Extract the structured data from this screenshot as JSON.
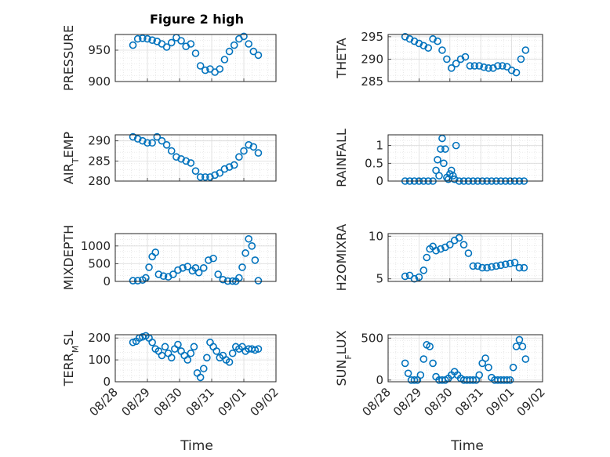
{
  "figure": {
    "title": "Figure 2 high"
  },
  "colors": {
    "marker": "#0072BD",
    "axis": "#262626",
    "grid": "#d9d9d9"
  },
  "chart_data": [
    {
      "type": "scatter",
      "ylabel": "PRESSURE",
      "ylabel_sub": "",
      "ylim": [
        900,
        975
      ],
      "yticks": [
        900,
        950
      ],
      "ytick_labels": [
        "900",
        "950"
      ],
      "xlim": [
        0,
        5
      ],
      "marker": "open-circle",
      "series": [
        {
          "x": [
            0.55,
            0.7,
            0.85,
            1.0,
            1.15,
            1.3,
            1.45,
            1.6,
            1.75,
            1.9,
            2.05,
            2.2,
            2.35,
            2.5,
            2.65,
            2.8,
            2.95,
            3.1,
            3.25,
            3.4,
            3.55,
            3.7,
            3.85,
            4.0,
            4.15,
            4.3,
            4.45
          ],
          "y": [
            958,
            968,
            969,
            968,
            966,
            964,
            960,
            955,
            962,
            970,
            965,
            956,
            960,
            945,
            925,
            918,
            920,
            915,
            920,
            935,
            948,
            958,
            968,
            972,
            960,
            948,
            942
          ]
        }
      ]
    },
    {
      "type": "scatter",
      "ylabel": "THETA",
      "ylabel_sub": "",
      "ylim": [
        285,
        295.5
      ],
      "yticks": [
        285,
        290,
        295
      ],
      "ytick_labels": [
        "285",
        "290",
        "295"
      ],
      "xlim": [
        0,
        5
      ],
      "marker": "open-circle",
      "series": [
        {
          "x": [
            0.55,
            0.7,
            0.85,
            1.0,
            1.15,
            1.3,
            1.45,
            1.6,
            1.75,
            1.9,
            2.05,
            2.2,
            2.35,
            2.5,
            2.65,
            2.8,
            2.95,
            3.1,
            3.25,
            3.4,
            3.55,
            3.7,
            3.85,
            4.0,
            4.15,
            4.3,
            4.45
          ],
          "y": [
            295,
            294.5,
            294,
            293.5,
            293,
            292.5,
            294.5,
            294,
            292,
            290,
            288,
            289,
            290,
            290.5,
            288.5,
            288.5,
            288.5,
            288.2,
            288,
            288,
            288.5,
            288.5,
            288.3,
            287.5,
            287,
            290,
            292
          ]
        }
      ]
    },
    {
      "type": "scatter",
      "ylabel": "AIR",
      "ylabel_sub": "T",
      "ylabel_suffix": "EMP",
      "ylim": [
        280,
        291.5
      ],
      "yticks": [
        280,
        285,
        290
      ],
      "ytick_labels": [
        "280",
        "285",
        "290"
      ],
      "xlim": [
        0,
        5
      ],
      "marker": "open-circle",
      "series": [
        {
          "x": [
            0.55,
            0.7,
            0.85,
            1.0,
            1.15,
            1.3,
            1.45,
            1.6,
            1.75,
            1.9,
            2.05,
            2.2,
            2.35,
            2.5,
            2.65,
            2.8,
            2.95,
            3.1,
            3.25,
            3.4,
            3.55,
            3.7,
            3.85,
            4.0,
            4.15,
            4.3,
            4.45
          ],
          "y": [
            291,
            290.5,
            290,
            289.5,
            289.5,
            291,
            290,
            289,
            287.5,
            286,
            285.5,
            285,
            284.5,
            282.5,
            281,
            281,
            281,
            281.5,
            282,
            283,
            283.5,
            284,
            286,
            287.5,
            289,
            288.5,
            287
          ]
        }
      ]
    },
    {
      "type": "scatter",
      "ylabel": "RAINFALL",
      "ylabel_sub": "",
      "ylim": [
        0,
        1.3
      ],
      "yticks": [
        0,
        0.5,
        1
      ],
      "ytick_labels": [
        "0",
        "0.5",
        "1"
      ],
      "xlim": [
        0,
        5
      ],
      "marker": "open-circle",
      "series": [
        {
          "x": [
            0.55,
            0.7,
            0.85,
            1.0,
            1.15,
            1.3,
            1.45,
            1.55,
            1.6,
            1.65,
            1.7,
            1.75,
            1.8,
            1.85,
            1.9,
            1.95,
            2.0,
            2.05,
            2.1,
            2.15,
            2.2,
            2.3,
            2.45,
            2.6,
            2.75,
            2.9,
            3.05,
            3.2,
            3.35,
            3.5,
            3.65,
            3.8,
            3.95,
            4.1,
            4.25,
            4.4
          ],
          "y": [
            0,
            0,
            0,
            0,
            0,
            0,
            0,
            0.3,
            0.6,
            0.15,
            0.9,
            1.2,
            0.5,
            0.9,
            0.1,
            0.05,
            0.2,
            0.3,
            0.15,
            0.05,
            1.0,
            0,
            0,
            0,
            0,
            0,
            0,
            0,
            0,
            0,
            0,
            0,
            0,
            0,
            0,
            0
          ]
        }
      ]
    },
    {
      "type": "scatter",
      "ylabel": "MIXDEPTH",
      "ylabel_sub": "",
      "ylim": [
        0,
        1350
      ],
      "yticks": [
        0,
        500,
        1000
      ],
      "ytick_labels": [
        "0",
        "500",
        "1000"
      ],
      "xlim": [
        0,
        5
      ],
      "marker": "open-circle",
      "series": [
        {
          "x": [
            0.55,
            0.7,
            0.85,
            0.95,
            1.05,
            1.15,
            1.25,
            1.35,
            1.5,
            1.65,
            1.8,
            1.95,
            2.1,
            2.25,
            2.4,
            2.5,
            2.6,
            2.75,
            2.9,
            3.05,
            3.2,
            3.35,
            3.5,
            3.65,
            3.75,
            3.85,
            3.95,
            4.05,
            4.15,
            4.25,
            4.35,
            4.45
          ],
          "y": [
            20,
            20,
            40,
            100,
            400,
            700,
            820,
            200,
            150,
            130,
            200,
            320,
            380,
            420,
            300,
            380,
            250,
            380,
            600,
            650,
            200,
            50,
            10,
            10,
            5,
            100,
            400,
            800,
            1200,
            1000,
            600,
            20
          ]
        }
      ]
    },
    {
      "type": "scatter",
      "ylabel": "H2OMIXRA",
      "ylabel_sub": "",
      "ylim": [
        4.7,
        10.3
      ],
      "yticks": [
        5,
        10
      ],
      "ytick_labels": [
        "5",
        "10"
      ],
      "xlim": [
        0,
        5
      ],
      "marker": "open-circle",
      "series": [
        {
          "x": [
            0.55,
            0.7,
            0.85,
            1.0,
            1.15,
            1.25,
            1.35,
            1.45,
            1.55,
            1.7,
            1.85,
            2.0,
            2.15,
            2.3,
            2.45,
            2.6,
            2.75,
            2.9,
            3.05,
            3.2,
            3.35,
            3.5,
            3.65,
            3.8,
            3.95,
            4.1,
            4.25,
            4.4
          ],
          "y": [
            5.3,
            5.4,
            5,
            5.2,
            6,
            7.5,
            8.5,
            8.8,
            8.3,
            8.5,
            8.7,
            9,
            9.5,
            9.8,
            9,
            8,
            6.5,
            6.5,
            6.3,
            6.3,
            6.4,
            6.5,
            6.6,
            6.7,
            6.8,
            6.9,
            6.3,
            6.3
          ]
        }
      ]
    },
    {
      "type": "scatter",
      "ylabel": "TERR",
      "ylabel_sub": "M",
      "ylabel_suffix": "SL",
      "ylim": [
        0,
        215
      ],
      "yticks": [
        0,
        100,
        200
      ],
      "ytick_labels": [
        "0",
        "100",
        "200"
      ],
      "xlim": [
        0,
        5
      ],
      "marker": "open-circle",
      "series": [
        {
          "x": [
            0.55,
            0.65,
            0.75,
            0.85,
            0.95,
            1.05,
            1.15,
            1.25,
            1.35,
            1.45,
            1.55,
            1.65,
            1.75,
            1.85,
            1.95,
            2.05,
            2.15,
            2.25,
            2.35,
            2.45,
            2.55,
            2.65,
            2.75,
            2.85,
            2.95,
            3.05,
            3.15,
            3.25,
            3.35,
            3.45,
            3.55,
            3.65,
            3.75,
            3.85,
            3.95,
            4.05,
            4.15,
            4.25,
            4.35,
            4.45
          ],
          "y": [
            180,
            185,
            200,
            205,
            210,
            200,
            180,
            150,
            140,
            120,
            160,
            130,
            110,
            150,
            170,
            140,
            120,
            100,
            130,
            160,
            40,
            20,
            60,
            110,
            180,
            160,
            140,
            110,
            120,
            100,
            90,
            130,
            160,
            150,
            160,
            140,
            150,
            150,
            145,
            150
          ]
        }
      ]
    },
    {
      "type": "scatter",
      "ylabel": "SUN",
      "ylabel_sub": "F",
      "ylabel_suffix": "LUX",
      "ylim": [
        -20,
        540
      ],
      "yticks": [
        0,
        500
      ],
      "ytick_labels": [
        "0",
        "500"
      ],
      "xlim": [
        0,
        5
      ],
      "marker": "open-circle",
      "xticks": [
        0,
        1,
        2,
        3,
        4,
        5
      ],
      "xtick_labels": [
        "08/28",
        "08/29",
        "08/30",
        "08/31",
        "09/01",
        "09/02"
      ],
      "xlabel": "Time",
      "series": [
        {
          "x": [
            0.55,
            0.65,
            0.75,
            0.85,
            0.95,
            1.05,
            1.15,
            1.25,
            1.35,
            1.45,
            1.55,
            1.65,
            1.75,
            1.85,
            1.95,
            2.05,
            2.15,
            2.25,
            2.35,
            2.45,
            2.55,
            2.65,
            2.75,
            2.85,
            2.95,
            3.05,
            3.15,
            3.25,
            3.35,
            3.45,
            3.55,
            3.65,
            3.75,
            3.85,
            3.95,
            4.05,
            4.15,
            4.25,
            4.35,
            4.45
          ],
          "y": [
            200,
            80,
            0,
            0,
            0,
            60,
            250,
            420,
            400,
            200,
            40,
            0,
            0,
            0,
            20,
            60,
            100,
            60,
            20,
            0,
            0,
            0,
            0,
            0,
            60,
            200,
            260,
            150,
            30,
            0,
            0,
            0,
            0,
            0,
            0,
            150,
            400,
            480,
            400,
            250
          ]
        }
      ]
    }
  ],
  "xaxis": {
    "xlabel": "Time",
    "xtick_labels": [
      "08/28",
      "08/29",
      "08/30",
      "08/31",
      "09/01",
      "09/02"
    ]
  }
}
